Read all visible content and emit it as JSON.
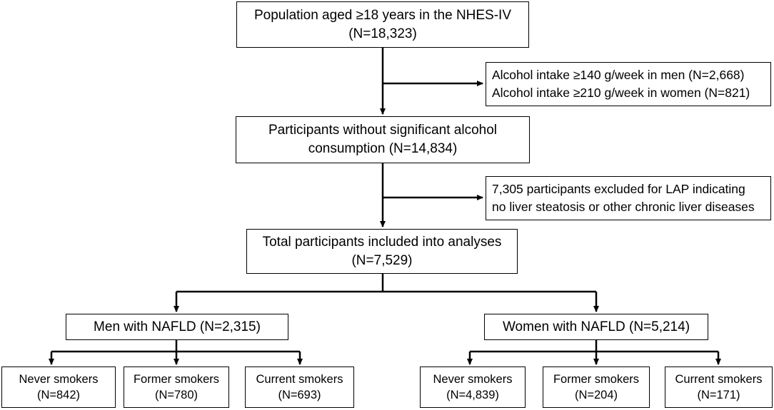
{
  "flowchart": {
    "population": {
      "line1": "Population aged ≥18 years in the NHES-IV",
      "line2": "(N=18,323)"
    },
    "alcohol_exclusion": {
      "line1": "Alcohol intake ≥140 g/week in men (N=2,668)",
      "line2": "Alcohol intake ≥210 g/week in women (N=821)"
    },
    "no_alcohol": {
      "line1": "Participants without significant alcohol",
      "line2": "consumption (N=14,834)"
    },
    "lap_exclusion": {
      "line1": "7,305 participants excluded for LAP indicating",
      "line2": "no liver steatosis or other chronic liver diseases"
    },
    "total": {
      "line1": "Total participants included into analyses",
      "line2": "(N=7,529)"
    },
    "men": {
      "label": "Men with NAFLD (N=2,315)"
    },
    "women": {
      "label": "Women with NAFLD (N=5,214)"
    },
    "men_never": {
      "line1": "Never smokers",
      "line2": "(N=842)"
    },
    "men_former": {
      "line1": "Former smokers",
      "line2": "(N=780)"
    },
    "men_current": {
      "line1": "Current smokers",
      "line2": "(N=693)"
    },
    "women_never": {
      "line1": "Never smokers",
      "line2": "(N=4,839)"
    },
    "women_former": {
      "line1": "Former smokers",
      "line2": "(N=204)"
    },
    "women_current": {
      "line1": "Current smokers",
      "line2": "(N=171)"
    }
  }
}
